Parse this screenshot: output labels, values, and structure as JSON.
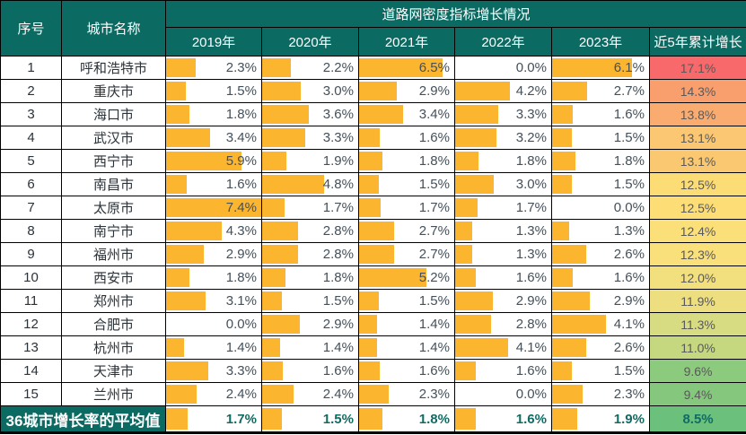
{
  "chart_data": {
    "type": "table",
    "title": "道路网密度指标增长情况",
    "columns": {
      "index": "序号",
      "city": "城市名称",
      "years": [
        "2019年",
        "2020年",
        "2021年",
        "2022年",
        "2023年"
      ],
      "cumulative": "近5年累计增长"
    },
    "bar_scale_max": 7.4,
    "colors": {
      "header_bg": "#0B6A62",
      "header_text": "#FFFFFF",
      "grid": "#000000",
      "data_bar": "#FCB52F",
      "value_text": "#44505A",
      "cumulative_text": "#595959",
      "summary_text": "#0F6B64"
    },
    "rows": [
      {
        "index": "1",
        "city": "呼和浩特市",
        "values": [
          "2.3%",
          "2.2%",
          "6.5%",
          "0.0%",
          "6.1%"
        ],
        "cumulative": "17.1%",
        "cum_color": "#F8696B"
      },
      {
        "index": "2",
        "city": "重庆市",
        "values": [
          "1.5%",
          "3.0%",
          "2.9%",
          "4.2%",
          "2.7%"
        ],
        "cumulative": "14.3%",
        "cum_color": "#F99F6E"
      },
      {
        "index": "3",
        "city": "海口市",
        "values": [
          "1.8%",
          "3.6%",
          "3.4%",
          "3.3%",
          "1.6%"
        ],
        "cumulative": "13.8%",
        "cum_color": "#FAAB6F"
      },
      {
        "index": "4",
        "city": "武汉市",
        "values": [
          "3.4%",
          "3.3%",
          "1.6%",
          "3.2%",
          "1.5%"
        ],
        "cumulative": "13.1%",
        "cum_color": "#FBC772"
      },
      {
        "index": "5",
        "city": "西宁市",
        "values": [
          "5.9%",
          "1.9%",
          "1.8%",
          "1.8%",
          "1.8%"
        ],
        "cumulative": "13.1%",
        "cum_color": "#FBC872"
      },
      {
        "index": "6",
        "city": "南昌市",
        "values": [
          "1.6%",
          "4.8%",
          "1.5%",
          "3.0%",
          "1.5%"
        ],
        "cumulative": "12.5%",
        "cum_color": "#FCDC75"
      },
      {
        "index": "7",
        "city": "太原市",
        "values": [
          "7.4%",
          "1.7%",
          "1.7%",
          "1.7%",
          "0.0%"
        ],
        "cumulative": "12.5%",
        "cum_color": "#FCDD76"
      },
      {
        "index": "8",
        "city": "南宁市",
        "values": [
          "4.3%",
          "2.8%",
          "2.7%",
          "1.3%",
          "1.3%"
        ],
        "cumulative": "12.4%",
        "cum_color": "#FBDF78"
      },
      {
        "index": "9",
        "city": "福州市",
        "values": [
          "2.9%",
          "2.8%",
          "2.7%",
          "1.3%",
          "2.6%"
        ],
        "cumulative": "12.3%",
        "cum_color": "#FAE07B"
      },
      {
        "index": "10",
        "city": "西安市",
        "values": [
          "1.8%",
          "1.8%",
          "5.2%",
          "1.6%",
          "1.6%"
        ],
        "cumulative": "12.0%",
        "cum_color": "#F2DF7D"
      },
      {
        "index": "11",
        "city": "郑州市",
        "values": [
          "3.1%",
          "1.5%",
          "1.5%",
          "2.9%",
          "2.9%"
        ],
        "cumulative": "11.9%",
        "cum_color": "#EDDF7F"
      },
      {
        "index": "12",
        "city": "合肥市",
        "values": [
          "0.0%",
          "2.9%",
          "1.4%",
          "2.8%",
          "4.1%"
        ],
        "cumulative": "11.3%",
        "cum_color": "#D7DB81"
      },
      {
        "index": "13",
        "city": "杭州市",
        "values": [
          "1.4%",
          "1.4%",
          "1.4%",
          "4.1%",
          "2.6%"
        ],
        "cumulative": "11.0%",
        "cum_color": "#C5D880"
      },
      {
        "index": "14",
        "city": "天津市",
        "values": [
          "3.3%",
          "1.6%",
          "1.6%",
          "1.6%",
          "1.5%"
        ],
        "cumulative": "9.6%",
        "cum_color": "#8CCA7E"
      },
      {
        "index": "15",
        "city": "兰州市",
        "values": [
          "2.4%",
          "2.4%",
          "2.3%",
          "0.0%",
          "2.3%"
        ],
        "cumulative": "9.4%",
        "cum_color": "#85C77D"
      }
    ],
    "summary": {
      "label": "36城市增长率的平均值",
      "values": [
        "1.7%",
        "1.5%",
        "1.8%",
        "1.6%",
        "1.9%"
      ],
      "cumulative": "8.5%",
      "cum_color": "#6BC17C"
    }
  }
}
